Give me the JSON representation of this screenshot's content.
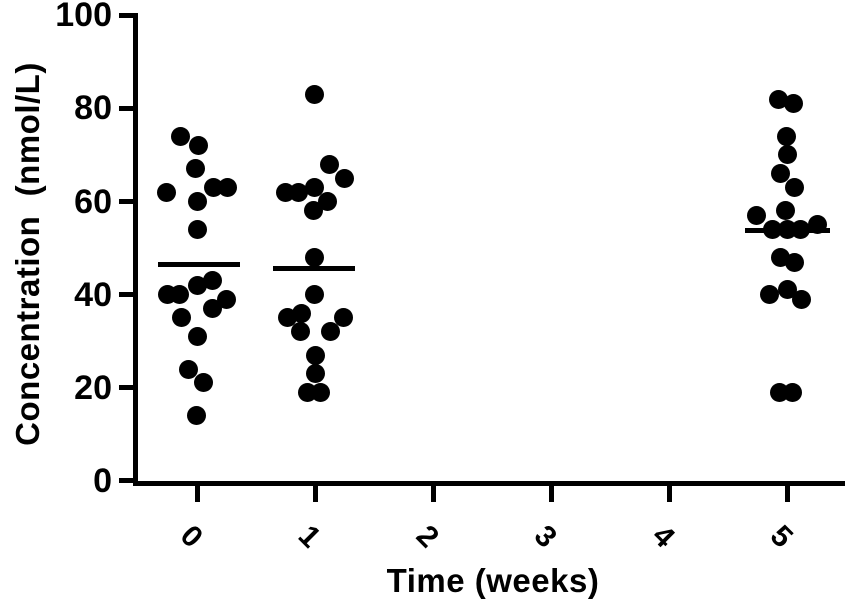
{
  "figure": {
    "background_color": "#ffffff",
    "ink_color": "#000000"
  },
  "chart_data": {
    "type": "scatter",
    "title": "",
    "xlabel": "Time (weeks)",
    "ylabel": "Concentration  (nmol/L)",
    "x_tick_labels": [
      "0",
      "1",
      "2",
      "3",
      "4",
      "5"
    ],
    "x_tick_values": [
      0,
      1,
      2,
      3,
      4,
      5
    ],
    "y_tick_labels": [
      "0",
      "20",
      "40",
      "60",
      "80",
      "100"
    ],
    "y_tick_values": [
      0,
      20,
      40,
      60,
      80,
      100
    ],
    "ylim": [
      0,
      100
    ],
    "grid": false,
    "legend": false,
    "marker_color": "#000000",
    "marker_shape": "filled-circle",
    "center_line": "mean",
    "groups": [
      {
        "week": 0,
        "mean": 46.4,
        "line_dx": [
          -39,
          43
        ],
        "points": [
          {
            "v": 74,
            "dx": -17
          },
          {
            "v": 72,
            "dx": 1
          },
          {
            "v": 67,
            "dx": -2
          },
          {
            "v": 63,
            "dx": 16
          },
          {
            "v": 63,
            "dx": 30
          },
          {
            "v": 62,
            "dx": -31
          },
          {
            "v": 60,
            "dx": 0
          },
          {
            "v": 54,
            "dx": 0
          },
          {
            "v": 43,
            "dx": 15
          },
          {
            "v": 42,
            "dx": 0
          },
          {
            "v": 40,
            "dx": -30
          },
          {
            "v": 40,
            "dx": -18
          },
          {
            "v": 39,
            "dx": 29
          },
          {
            "v": 37,
            "dx": 15
          },
          {
            "v": 35,
            "dx": -16
          },
          {
            "v": 31,
            "dx": 0
          },
          {
            "v": 24,
            "dx": -9
          },
          {
            "v": 21,
            "dx": 6
          },
          {
            "v": 14,
            "dx": -1
          }
        ]
      },
      {
        "week": 1,
        "mean": 45.6,
        "line_dx": [
          -42,
          40
        ],
        "points": [
          {
            "v": 83,
            "dx": -1
          },
          {
            "v": 68,
            "dx": 14
          },
          {
            "v": 65,
            "dx": 29
          },
          {
            "v": 63,
            "dx": -1
          },
          {
            "v": 62,
            "dx": -30
          },
          {
            "v": 62,
            "dx": -17
          },
          {
            "v": 60,
            "dx": 12
          },
          {
            "v": 58,
            "dx": -2
          },
          {
            "v": 48,
            "dx": -1
          },
          {
            "v": 40,
            "dx": -1
          },
          {
            "v": 36,
            "dx": -14
          },
          {
            "v": 35,
            "dx": -28
          },
          {
            "v": 35,
            "dx": 28
          },
          {
            "v": 32,
            "dx": -15
          },
          {
            "v": 32,
            "dx": 15
          },
          {
            "v": 27,
            "dx": 0
          },
          {
            "v": 23,
            "dx": 0
          },
          {
            "v": 19,
            "dx": -8
          },
          {
            "v": 19,
            "dx": 5
          }
        ]
      },
      {
        "week": 5,
        "mean": 53.7,
        "line_dx": [
          -42,
          43
        ],
        "points": [
          {
            "v": 82,
            "dx": -9
          },
          {
            "v": 81,
            "dx": 6
          },
          {
            "v": 74,
            "dx": -1
          },
          {
            "v": 70,
            "dx": 0
          },
          {
            "v": 66,
            "dx": -7
          },
          {
            "v": 63,
            "dx": 7
          },
          {
            "v": 58,
            "dx": -2
          },
          {
            "v": 57,
            "dx": -31
          },
          {
            "v": 55,
            "dx": 30
          },
          {
            "v": 54,
            "dx": -15
          },
          {
            "v": 54,
            "dx": 0
          },
          {
            "v": 54,
            "dx": 13
          },
          {
            "v": 48,
            "dx": -7
          },
          {
            "v": 47,
            "dx": 7
          },
          {
            "v": 41,
            "dx": 0
          },
          {
            "v": 40,
            "dx": -18
          },
          {
            "v": 39,
            "dx": 14
          },
          {
            "v": 19,
            "dx": -8
          },
          {
            "v": 19,
            "dx": 5
          }
        ]
      }
    ]
  }
}
